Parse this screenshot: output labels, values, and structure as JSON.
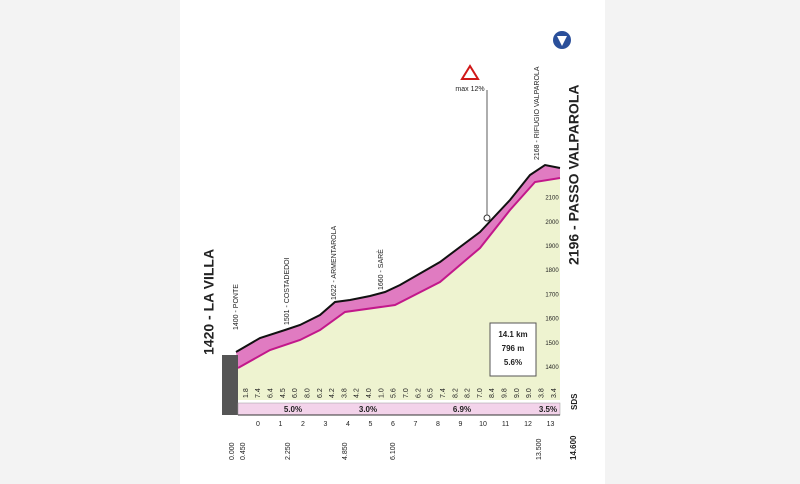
{
  "start": {
    "title": "1420 - LA VILLA"
  },
  "finish": {
    "title": "2196 - PASSO VALPAROLA"
  },
  "waypoints": [
    "1400 - PONTE",
    "1501 - COSTADEDOI",
    "1622 - ARMENTAROLA",
    "1660 - SARÈ",
    "2168 - RIFUGIO VALPAROLA"
  ],
  "max_gradient": "max 12%",
  "stats": [
    "14.1 km",
    "796 m",
    "5.6%"
  ],
  "altitude_labels": [
    "2100",
    "2000",
    "1900",
    "1800",
    "1700",
    "1600",
    "1500",
    "1400"
  ],
  "gradients": [
    "1.8",
    "7.4",
    "6.4",
    "4.5",
    "6.0",
    "8.0",
    "6.2",
    "4.2",
    "3.8",
    "4.2",
    "4.0",
    "1.0",
    "5.6",
    "7.0",
    "6.2",
    "6.5",
    "7.4",
    "8.2",
    "8.2",
    "7.0",
    "8.4",
    "9.8",
    "9.0",
    "9.0",
    "3.8",
    "3.4"
  ],
  "sections": [
    "5.0%",
    "3.0%",
    "6.9%",
    "3.5%"
  ],
  "km_labels": [
    "0",
    "1",
    "2",
    "3",
    "4",
    "5",
    "6",
    "7",
    "8",
    "9",
    "10",
    "11",
    "12",
    "13"
  ],
  "distances": [
    "0.000",
    "0.450",
    "2.250",
    "4.850",
    "6.100",
    "13.500",
    "14.600"
  ],
  "logo_text": "SDS"
}
